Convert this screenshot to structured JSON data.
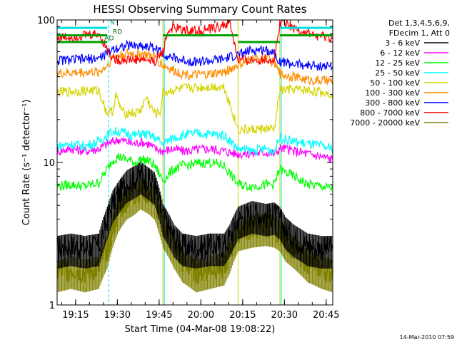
{
  "chart_data": {
    "type": "line",
    "title": "HESSI Observing Summary Count Rates",
    "xlabel": "Start Time (04-Mar-08 19:08:22)",
    "ylabel": "Count Rate (s⁻¹ detector⁻¹)",
    "yscale": "log",
    "ylim": [
      1,
      100
    ],
    "xlim_minutes": [
      0,
      99
    ],
    "y_tick_labels": [
      "1",
      "10",
      "100"
    ],
    "x_tick_labels": [
      "19:15",
      "19:30",
      "19:45",
      "20:00",
      "20:15",
      "20:30",
      "20:45"
    ],
    "legend_header": [
      "Det 1,3,4,5,6,9,",
      "FDecim 1, Att 0"
    ],
    "legend_placement": "right",
    "grid": false,
    "timestamp": "14-Mar-2010 07:59",
    "flag_labels": [
      "N",
      "RD",
      "AD"
    ],
    "flag_bars": [
      {
        "label": "N",
        "color": "#00e0e0",
        "intervals": [
          [
            0,
            18
          ],
          [
            80,
            99
          ]
        ],
        "y": 88
      },
      {
        "label": "RD",
        "color": "#00a000",
        "intervals": [
          [
            0,
            18
          ],
          [
            38,
            65
          ],
          [
            80,
            99
          ]
        ],
        "y": 78
      },
      {
        "label": "AD",
        "color": "#00a000",
        "intervals": [
          [
            0,
            18
          ],
          [
            65,
            80
          ]
        ],
        "y": 70
      }
    ],
    "vertical_lines": {
      "dashed_cyan": [
        18.5,
        99
      ],
      "solid_cyan": [
        0,
        38.5,
        80.5
      ],
      "solid_yellow": [
        38,
        65,
        80
      ]
    },
    "series": [
      {
        "name": "3 - 6 keV",
        "color": "#000000",
        "x": [
          0,
          5,
          10,
          15,
          18,
          20,
          22,
          25,
          28,
          30,
          33,
          35,
          38,
          42,
          45,
          50,
          55,
          60,
          62,
          65,
          70,
          75,
          78,
          80,
          82,
          85,
          90,
          95,
          99
        ],
        "y": [
          2.5,
          2.6,
          2.5,
          2.6,
          4.0,
          5.2,
          6.0,
          7.2,
          7.8,
          8.3,
          7.5,
          7.0,
          4.2,
          3.0,
          2.6,
          2.5,
          2.6,
          2.6,
          3.0,
          4.0,
          4.4,
          4.2,
          4.3,
          4.0,
          3.4,
          3.0,
          2.6,
          2.5,
          2.5
        ]
      },
      {
        "name": "6 - 12 keV",
        "color": "#ff00ff",
        "x": [
          0,
          5,
          10,
          15,
          18,
          20,
          22,
          25,
          28,
          30,
          33,
          35,
          38,
          42,
          45,
          50,
          55,
          60,
          65,
          70,
          75,
          78,
          80,
          82,
          85,
          90,
          95,
          99
        ],
        "y": [
          12.0,
          12.5,
          12.0,
          12.5,
          13.5,
          14.0,
          14.5,
          14.0,
          13.5,
          14.0,
          13.5,
          12.5,
          12.0,
          12.5,
          12.0,
          12.3,
          12.5,
          12.0,
          11.5,
          11.5,
          11.8,
          11.5,
          12.5,
          12.5,
          12.0,
          11.5,
          11.0,
          10.5
        ]
      },
      {
        "name": "12 - 25 keV",
        "color": "#00ff00",
        "x": [
          0,
          5,
          10,
          15,
          18,
          20,
          22,
          25,
          28,
          30,
          33,
          35,
          38,
          42,
          45,
          50,
          55,
          60,
          65,
          70,
          75,
          78,
          80,
          82,
          85,
          90,
          95,
          99
        ],
        "y": [
          6.8,
          7.0,
          6.8,
          7.2,
          9.0,
          10.5,
          11.0,
          10.5,
          10.0,
          10.5,
          10.2,
          9.5,
          7.5,
          9.0,
          9.5,
          9.8,
          10.0,
          9.5,
          7.0,
          6.8,
          7.0,
          7.0,
          9.0,
          8.5,
          8.0,
          7.0,
          6.8,
          6.5
        ]
      },
      {
        "name": "25 - 50 keV",
        "color": "#00ffff",
        "x": [
          0,
          5,
          10,
          15,
          18,
          20,
          22,
          25,
          28,
          30,
          33,
          35,
          38,
          42,
          45,
          50,
          55,
          60,
          65,
          70,
          75,
          78,
          80,
          82,
          85,
          90,
          95,
          99
        ],
        "y": [
          13.0,
          13.5,
          13.0,
          14.0,
          15.5,
          16.5,
          16.5,
          16.0,
          15.5,
          16.0,
          15.5,
          15.0,
          13.5,
          15.0,
          15.5,
          16.0,
          15.8,
          15.5,
          12.5,
          12.0,
          12.5,
          12.0,
          15.0,
          14.5,
          14.0,
          13.5,
          13.0,
          12.5
        ]
      },
      {
        "name": "50 - 100 keV",
        "color": "#d4d400",
        "x": [
          0,
          5,
          10,
          15,
          18,
          20,
          21,
          22,
          24,
          26,
          28,
          30,
          32,
          33,
          35,
          37,
          38,
          45,
          50,
          55,
          60,
          65,
          70,
          75,
          78,
          80,
          85,
          90,
          95,
          99
        ],
        "y": [
          31.0,
          31.5,
          32.0,
          32.0,
          22.0,
          23.0,
          30.0,
          26.0,
          22.0,
          22.5,
          22.0,
          23.0,
          29.0,
          26.0,
          22.0,
          22.5,
          31.0,
          33.0,
          33.5,
          34.0,
          34.0,
          17.0,
          17.0,
          17.2,
          17.0,
          32.0,
          32.5,
          32.0,
          31.0,
          30.5
        ]
      },
      {
        "name": "100 - 300 keV",
        "color": "#ff8c00",
        "x": [
          0,
          5,
          10,
          15,
          18,
          20,
          25,
          30,
          35,
          38,
          42,
          45,
          50,
          55,
          60,
          65,
          70,
          75,
          78,
          80,
          85,
          90,
          95,
          99
        ],
        "y": [
          42.0,
          42.5,
          43.0,
          43.0,
          48.0,
          55.0,
          58.0,
          58.0,
          55.0,
          48.0,
          44.0,
          42.0,
          41.0,
          41.5,
          43.0,
          48.0,
          53.0,
          55.0,
          50.0,
          42.0,
          40.0,
          38.0,
          37.5,
          37.0
        ]
      },
      {
        "name": "300 - 800 keV",
        "color": "#0000ff",
        "x": [
          0,
          5,
          10,
          15,
          18,
          20,
          25,
          30,
          35,
          38,
          42,
          45,
          50,
          55,
          60,
          65,
          70,
          75,
          78,
          80,
          85,
          90,
          95,
          99
        ],
        "y": [
          52.0,
          52.5,
          53.0,
          54.0,
          58.0,
          63.0,
          66.0,
          66.0,
          64.0,
          58.0,
          54.0,
          52.0,
          51.0,
          51.5,
          53.0,
          57.0,
          61.0,
          62.0,
          59.0,
          51.0,
          49.0,
          48.0,
          47.5,
          47.0
        ]
      },
      {
        "name": "800 - 7000 keV",
        "color": "#ff0000",
        "x": [
          0,
          5,
          10,
          15,
          18,
          20,
          22,
          25,
          28,
          30,
          33,
          35,
          38,
          40,
          42,
          45,
          50,
          55,
          60,
          62,
          65,
          70,
          75,
          78,
          80,
          82,
          85,
          90,
          95,
          99
        ],
        "y": [
          75.0,
          76.0,
          78.0,
          80.0,
          62.0,
          54.0,
          52.0,
          53.0,
          52.5,
          53.0,
          52.0,
          51.0,
          60.0,
          85.0,
          88.0,
          85.0,
          84.0,
          86.0,
          92.0,
          96.0,
          52.0,
          52.0,
          53.0,
          52.0,
          95.0,
          98.0,
          88.0,
          80.0,
          76.0,
          74.0
        ]
      },
      {
        "name": "7000 - 20000 keV",
        "color": "#808000",
        "x": [
          0,
          5,
          10,
          15,
          18,
          20,
          22,
          25,
          28,
          30,
          33,
          35,
          38,
          40,
          42,
          45,
          50,
          55,
          60,
          62,
          65,
          70,
          75,
          78,
          80,
          82,
          85,
          90,
          95,
          99
        ],
        "y": [
          1.7,
          1.8,
          1.7,
          1.8,
          2.5,
          3.5,
          4.5,
          5.5,
          6.0,
          6.5,
          6.0,
          5.5,
          3.5,
          3.0,
          2.5,
          2.0,
          1.7,
          1.8,
          1.9,
          2.3,
          3.3,
          3.5,
          3.6,
          3.5,
          3.3,
          2.8,
          2.5,
          2.0,
          1.8,
          1.7
        ]
      }
    ]
  }
}
